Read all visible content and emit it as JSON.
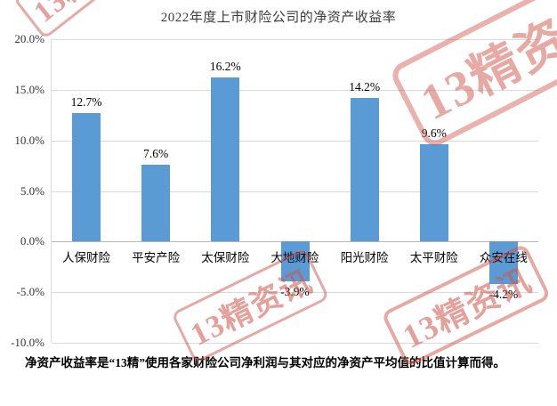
{
  "watermark": {
    "text": "13精资讯",
    "color": "#ce5448"
  },
  "chart_data": {
    "type": "bar",
    "title": "2022年度上市财险公司的净资产收益率",
    "categories": [
      "人保财险",
      "平安产险",
      "太保财险",
      "大地财险",
      "阳光财险",
      "太平财险",
      "众安在线"
    ],
    "values": [
      12.7,
      7.6,
      16.2,
      -3.9,
      14.2,
      9.6,
      -4.2
    ],
    "value_labels": [
      "12.7%",
      "7.6%",
      "16.2%",
      "-3.9%",
      "14.2%",
      "9.6%",
      "-4.2%"
    ],
    "ylim": [
      -10,
      20
    ],
    "ytick_step": 5,
    "ytick_labels": [
      "20.0%",
      "15.0%",
      "10.0%",
      "5.0%",
      "0.0%",
      "-5.0%",
      "-10.0%"
    ],
    "bar_color": "#5b9bd5",
    "grid": true,
    "legend": "none"
  },
  "footnote": "净资产收益率是“13精”使用各家财险公司净利润与其对应的净资产平均值的比值计算而得。"
}
